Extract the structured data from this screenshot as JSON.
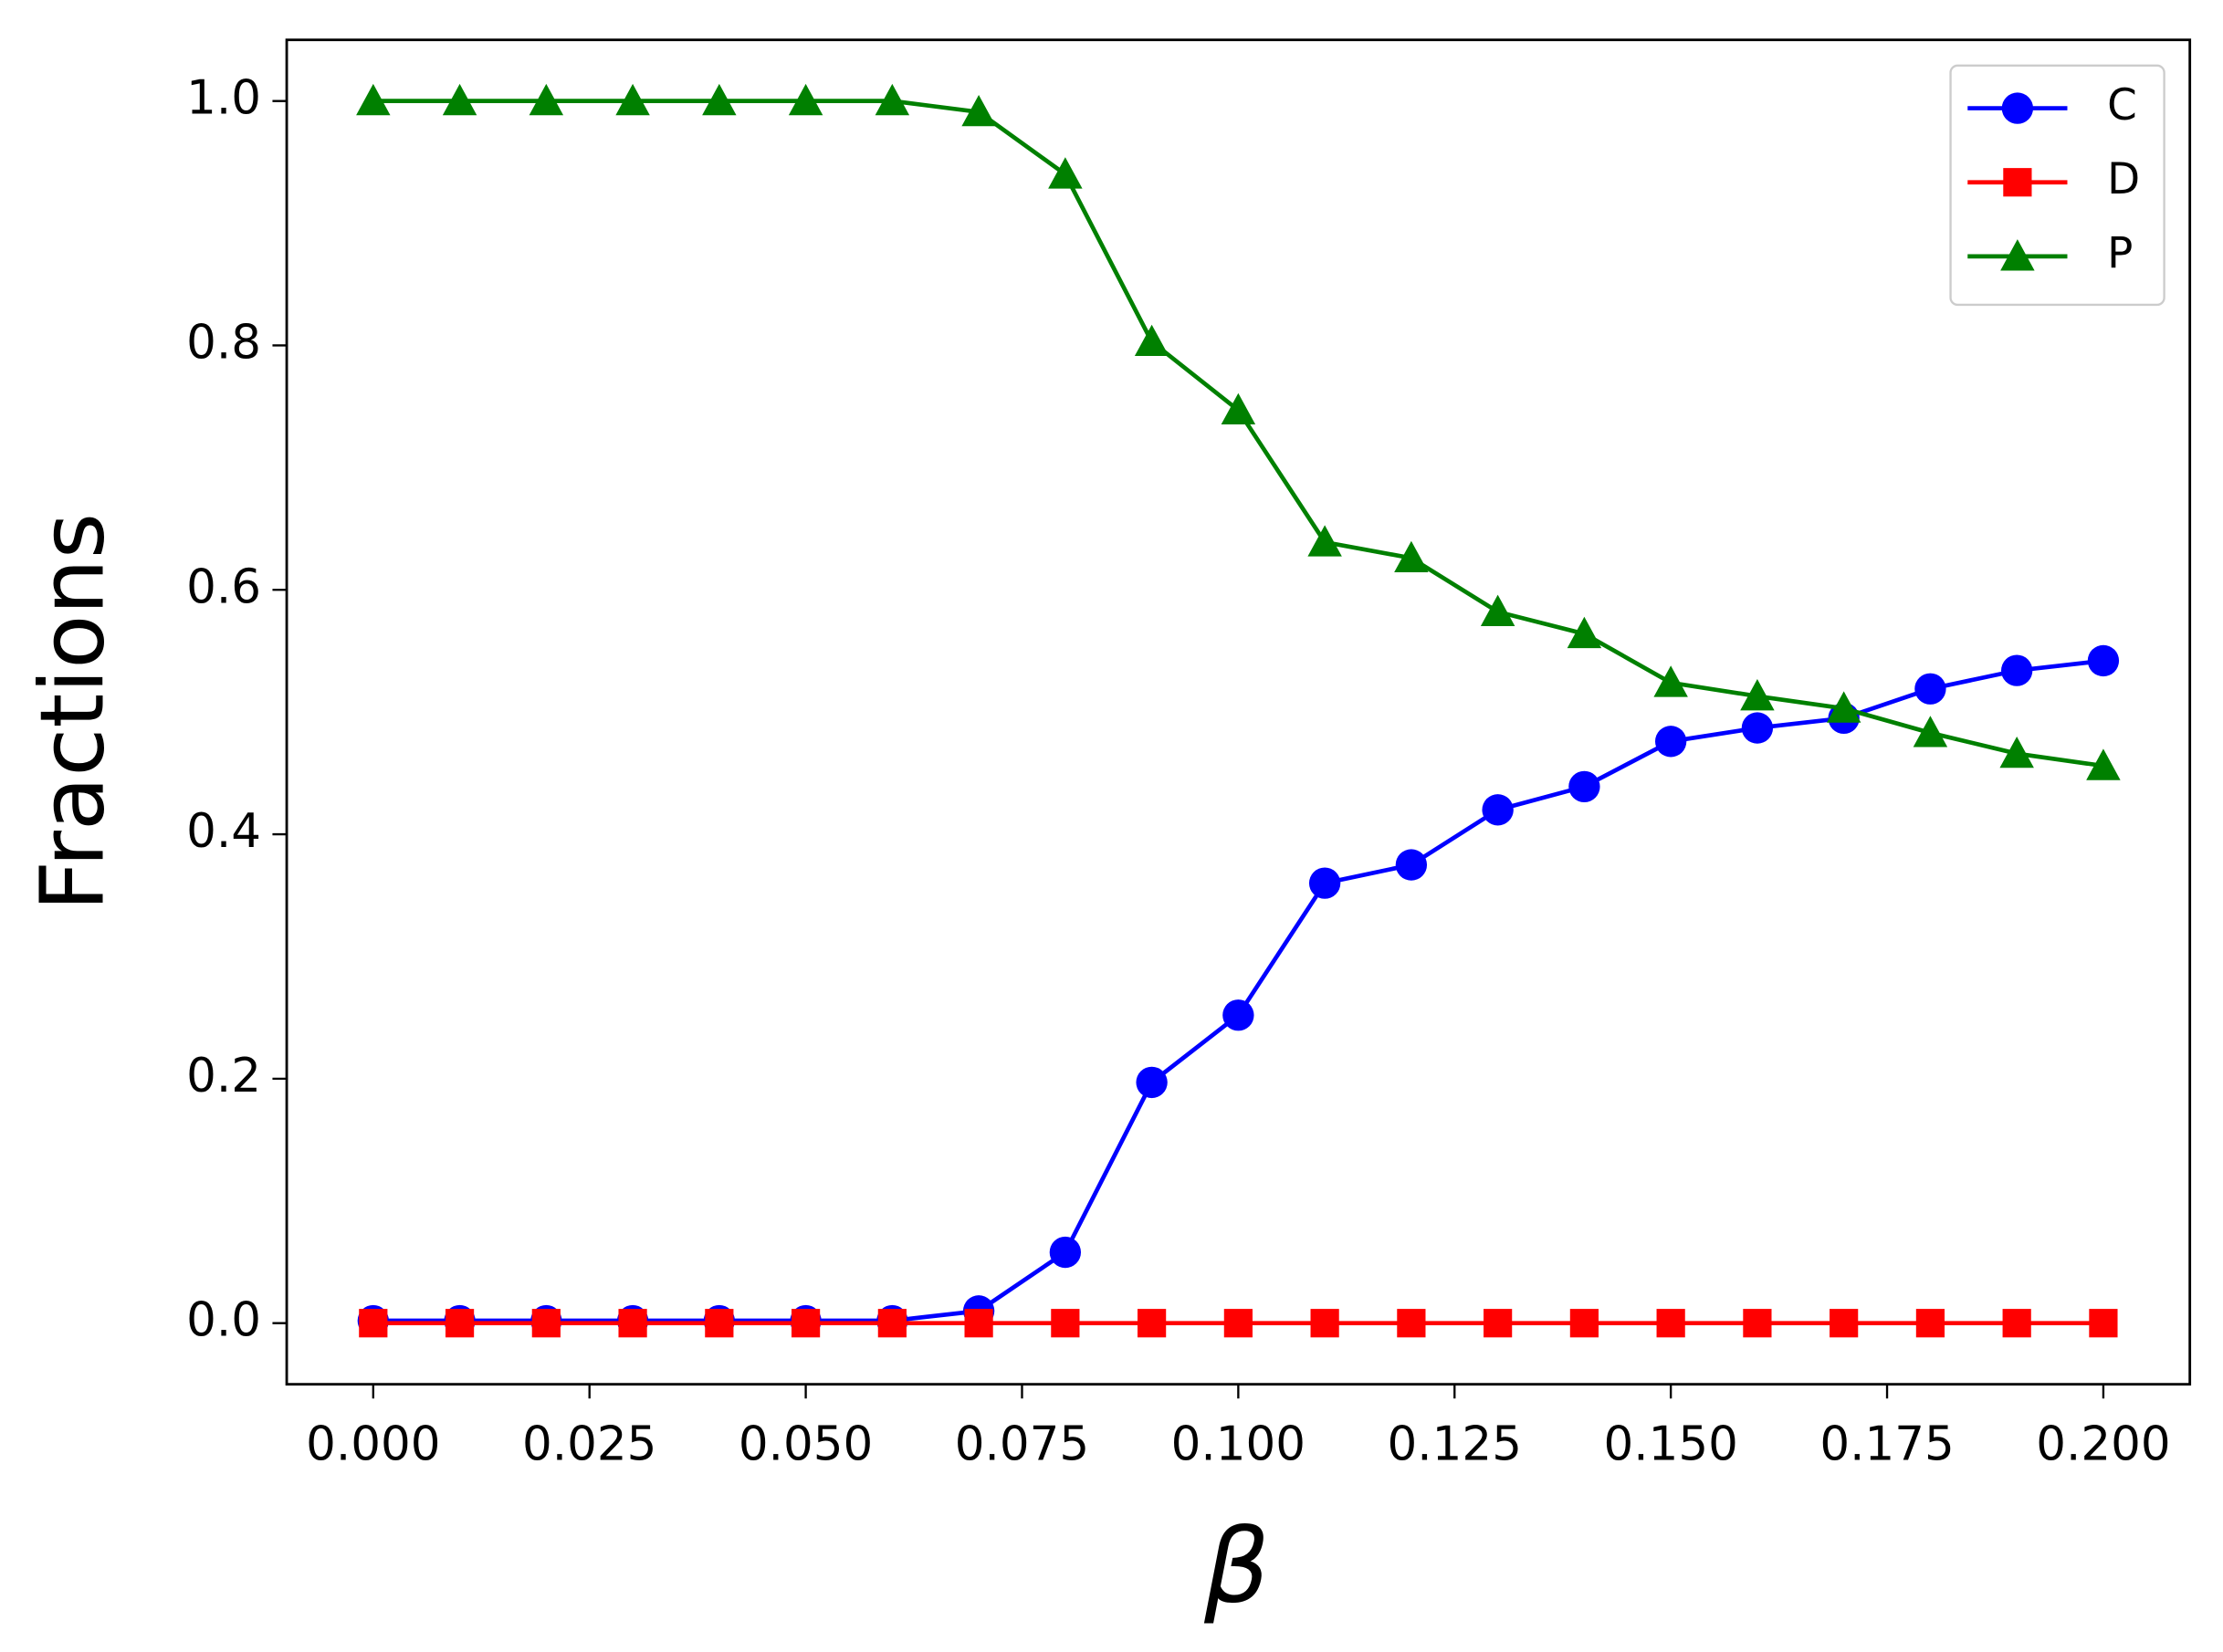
{
  "chart_data": {
    "type": "line",
    "x_label": "β",
    "y_label": "Fractions",
    "x": [
      0,
      0.01,
      0.02,
      0.03,
      0.04,
      0.05,
      0.06,
      0.07,
      0.08,
      0.09,
      0.1,
      0.11,
      0.12,
      0.13,
      0.14,
      0.15,
      0.16,
      0.17,
      0.18,
      0.19,
      0.2
    ],
    "series": [
      {
        "name": "C",
        "color": "#0000ff",
        "marker": "circle",
        "values": [
          0.002,
          0.002,
          0.002,
          0.002,
          0.002,
          0.002,
          0.002,
          0.01,
          0.058,
          0.197,
          0.252,
          0.36,
          0.375,
          0.42,
          0.439,
          0.476,
          0.487,
          0.495,
          0.519,
          0.534,
          0.542
        ]
      },
      {
        "name": "D",
        "color": "#ff0000",
        "marker": "square",
        "values": [
          0,
          0,
          0,
          0,
          0,
          0,
          0,
          0,
          0,
          0,
          0,
          0,
          0,
          0,
          0,
          0,
          0,
          0,
          0,
          0,
          0
        ]
      },
      {
        "name": "P",
        "color": "#008000",
        "marker": "triangle",
        "values": [
          1,
          1,
          1,
          1,
          1,
          1,
          1,
          0.991,
          0.94,
          0.803,
          0.747,
          0.639,
          0.626,
          0.582,
          0.564,
          0.524,
          0.513,
          0.503,
          0.483,
          0.466,
          0.456
        ]
      }
    ],
    "xlim": [
      -0.01,
      0.21
    ],
    "xticks": [
      {
        "value": 0,
        "label": "0.000"
      },
      {
        "value": 0.025,
        "label": "0.025"
      },
      {
        "value": 0.05,
        "label": "0.050"
      },
      {
        "value": 0.075,
        "label": "0.075"
      },
      {
        "value": 0.1,
        "label": "0.100"
      },
      {
        "value": 0.125,
        "label": "0.125"
      },
      {
        "value": 0.15,
        "label": "0.150"
      },
      {
        "value": 0.175,
        "label": "0.175"
      },
      {
        "value": 0.2,
        "label": "0.200"
      }
    ],
    "ylim": [
      -0.05,
      1.05
    ],
    "yticks": [
      {
        "value": 0,
        "label": "0.0"
      },
      0.2,
      0.4,
      0.6,
      0.8,
      {
        "value": 1,
        "label": "1.0"
      }
    ],
    "grid": false,
    "legend": "upper right"
  }
}
